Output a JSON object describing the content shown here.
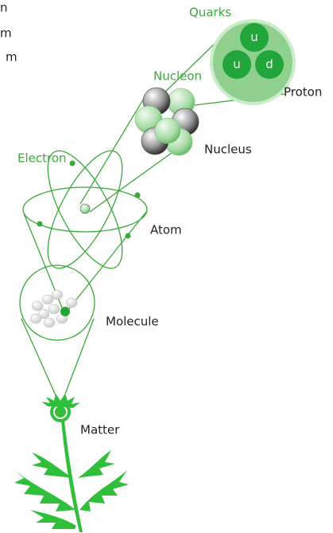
{
  "edge_text": [
    "n",
    "m",
    "m"
  ],
  "labels": {
    "quarks": "Quarks",
    "nucleon": "Nucleon",
    "proton": "Proton",
    "nucleus": "Nucleus",
    "electron": "Electron",
    "atom": "Atom",
    "molecule": "Molecule",
    "matter": "Matter"
  },
  "quarks": [
    "u",
    "u",
    "d"
  ]
}
